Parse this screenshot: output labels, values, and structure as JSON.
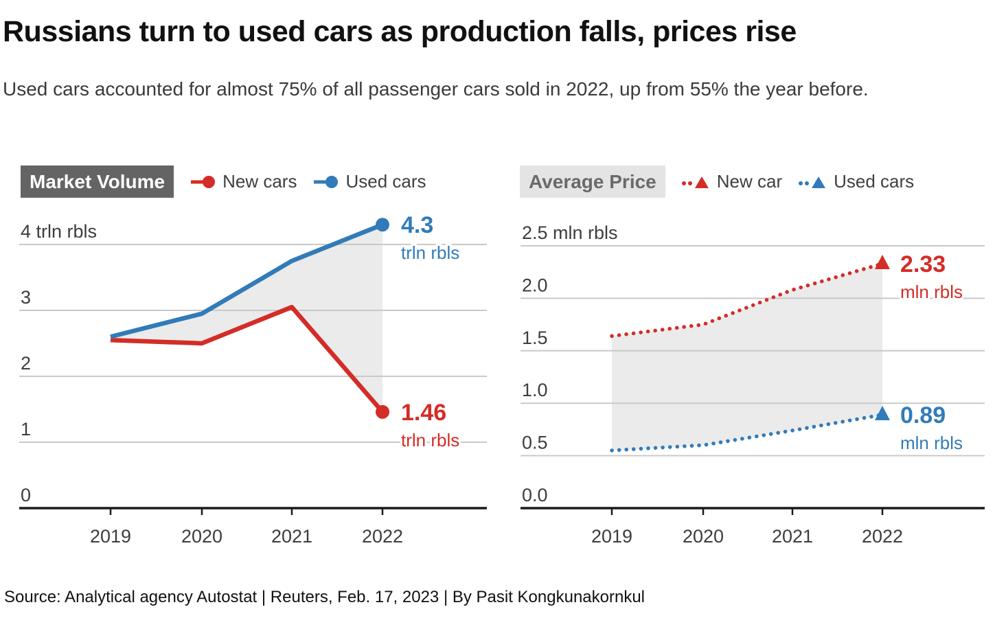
{
  "header": {
    "title": "Russians turn to used cars as production falls, prices rise",
    "subtitle": "Used cars accounted for almost 75% of all passenger cars sold in 2022, up from 55% the year before."
  },
  "source": "Source: Analytical agency Autostat | Reuters, Feb. 17, 2023 | By Pasit Kongkunakornkul",
  "colors": {
    "new_cars": "#d42c26",
    "used_cars": "#317bb8",
    "area_fill": "#ebebeb",
    "grid": "#c9c9c9",
    "axis": "#1a1a1a",
    "chip_dark_bg": "#646464",
    "chip_dark_text": "#ffffff",
    "chip_light_bg": "#e4e4e4",
    "chip_light_text": "#6a6a6a",
    "tick_text": "#3d3d3d"
  },
  "chart_data": [
    {
      "type": "line",
      "title": "Market Volume",
      "unit": "trln rbls",
      "grid": true,
      "legend_position": "top",
      "categories": [
        "2019",
        "2020",
        "2021",
        "2022"
      ],
      "ylim": [
        0,
        4.5
      ],
      "yticks": [
        {
          "value": 4,
          "label": "4 trln rbls"
        },
        {
          "value": 3,
          "label": "3"
        },
        {
          "value": 2,
          "label": "2"
        },
        {
          "value": 1,
          "label": "1"
        },
        {
          "value": 0,
          "label": "0"
        }
      ],
      "series": [
        {
          "name": "New cars",
          "color_key": "new_cars",
          "style": "solid",
          "marker": "circle",
          "values": [
            2.55,
            2.5,
            3.05,
            1.46
          ],
          "end_label": {
            "value": "1.46",
            "unit": "trln rbls"
          }
        },
        {
          "name": "Used cars",
          "color_key": "used_cars",
          "style": "solid",
          "marker": "circle",
          "values": [
            2.6,
            2.95,
            3.75,
            4.3
          ],
          "end_label": {
            "value": "4.3",
            "unit": "trln rbls"
          }
        }
      ],
      "area_between_series": true
    },
    {
      "type": "line",
      "title": "Average Price",
      "unit": "mln rbls",
      "grid": true,
      "legend_position": "top",
      "categories": [
        "2019",
        "2020",
        "2021",
        "2022"
      ],
      "ylim": [
        0,
        2.5
      ],
      "yticks": [
        {
          "value": 2.5,
          "label": "2.5 mln rbls"
        },
        {
          "value": 2.0,
          "label": "2.0"
        },
        {
          "value": 1.5,
          "label": "1.5"
        },
        {
          "value": 1.0,
          "label": "1.0"
        },
        {
          "value": 0.5,
          "label": "0.5"
        },
        {
          "value": 0.0,
          "label": "0.0"
        }
      ],
      "series": [
        {
          "name": "New car",
          "color_key": "new_cars",
          "style": "dotted",
          "marker": "triangle",
          "values": [
            1.64,
            1.75,
            2.08,
            2.33
          ],
          "end_label": {
            "value": "2.33",
            "unit": "mln rbls"
          }
        },
        {
          "name": "Used cars",
          "color_key": "used_cars",
          "style": "dotted",
          "marker": "triangle",
          "values": [
            0.55,
            0.6,
            0.74,
            0.89
          ],
          "end_label": {
            "value": "0.89",
            "unit": "mln rbls"
          }
        }
      ],
      "area_between_series": true
    }
  ]
}
